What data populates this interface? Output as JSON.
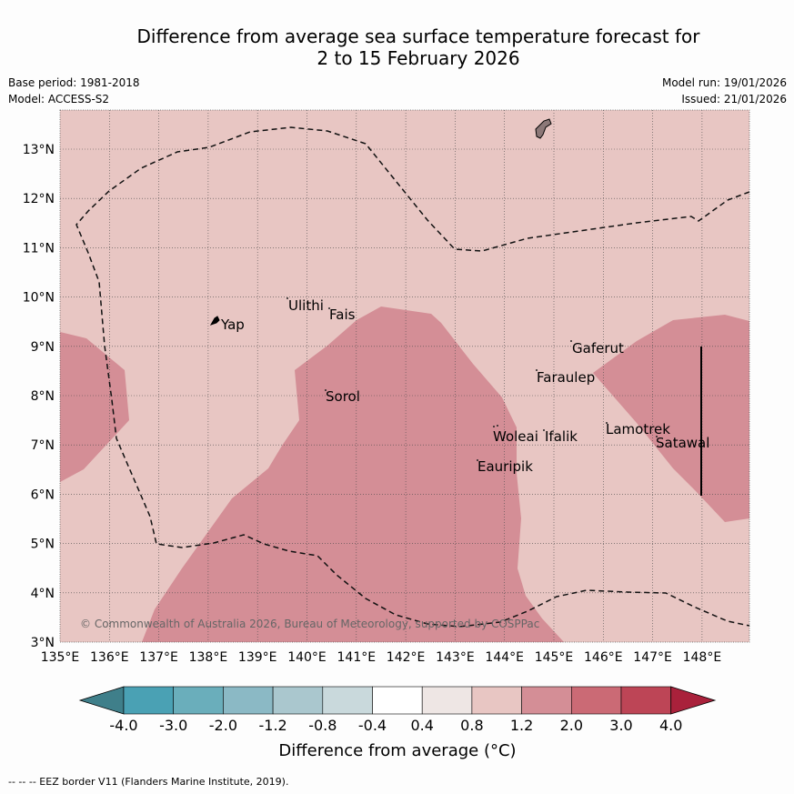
{
  "header": {
    "title_line1": "Difference from average sea surface temperature forecast for",
    "title_line2": "2 to 15 February 2026",
    "base_period": "Base period: 1981-2018",
    "model": "Model: ACCESS-S2",
    "model_run": "Model run: 19/01/2026",
    "issued": "Issued: 21/01/2026"
  },
  "map": {
    "lat_labels": [
      "3°N",
      "4°N",
      "5°N",
      "6°N",
      "7°N",
      "8°N",
      "9°N",
      "10°N",
      "11°N",
      "12°N",
      "13°N"
    ],
    "lon_labels": [
      "135°E",
      "136°E",
      "137°E",
      "138°E",
      "139°E",
      "140°E",
      "141°E",
      "142°E",
      "143°E",
      "144°E",
      "145°E",
      "146°E",
      "147°E",
      "148°E"
    ],
    "places": [
      "Yap",
      "Ulithi",
      "Fais",
      "Gaferut",
      "Faraulep",
      "Sorol",
      "Woleai",
      "Ifalik",
      "Lamotrek",
      "Satawal",
      "Eauripik"
    ],
    "copyright": "© Commonwealth of Australia 2026, Bureau of Meteorology, supported by COSPPac",
    "colors": {
      "background_anomaly": "#e8c6c3",
      "warm_anomaly": "#d48e96",
      "land": "#8c7878"
    }
  },
  "colorbar": {
    "ticks": [
      "-4.0",
      "-3.0",
      "-2.0",
      "-1.2",
      "-0.8",
      "-0.4",
      "0.4",
      "0.8",
      "1.2",
      "2.0",
      "3.0",
      "4.0"
    ],
    "colors": [
      "#3f7f8a",
      "#4aa1b4",
      "#6aaebb",
      "#8bb9c5",
      "#aac7ce",
      "#c9d9dc",
      "#ffffff",
      "#eee6e4",
      "#e8c6c3",
      "#d48e96",
      "#cb6a75",
      "#bd4556",
      "#a9213b"
    ],
    "label": "Difference from average (°C)"
  },
  "footer": {
    "legend": "--  --  -- EEZ border V11 (Flanders Marine Institute, 2019)."
  }
}
